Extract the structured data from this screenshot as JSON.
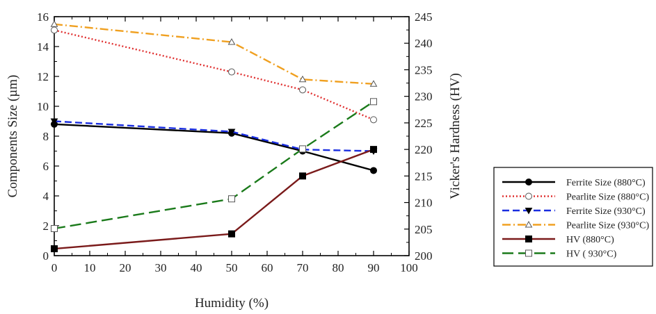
{
  "chart_data": {
    "type": "line",
    "title": "",
    "xlabel": "Humidity (%)",
    "ylabel": "Components Size (µm)",
    "y2label": "Vicker's Hardness (HV)",
    "xlim": [
      0,
      100
    ],
    "ylim": [
      0,
      16
    ],
    "y2lim": [
      200,
      245
    ],
    "xticks": [
      "0",
      "10",
      "20",
      "30",
      "40",
      "50",
      "60",
      "70",
      "80",
      "90",
      "100"
    ],
    "yticks": [
      "0",
      "2",
      "4",
      "6",
      "8",
      "10",
      "12",
      "14",
      "16"
    ],
    "y2ticks": [
      "200",
      "205",
      "210",
      "215",
      "220",
      "225",
      "230",
      "235",
      "240",
      "245"
    ],
    "grid": false,
    "legend_position": "right",
    "series": [
      {
        "name": "Ferrite Size (880°C)",
        "axis": "left",
        "color": "#000000",
        "style": "solid",
        "marker": "filled-circle",
        "x": [
          0,
          50,
          70,
          90
        ],
        "y": [
          8.8,
          8.2,
          7.0,
          5.7
        ]
      },
      {
        "name": "Pearlite Size (880°C)",
        "axis": "left",
        "color": "#e03030",
        "style": "dotted",
        "marker": "open-circle",
        "x": [
          0,
          50,
          70,
          90
        ],
        "y": [
          15.1,
          12.3,
          11.1,
          9.1
        ]
      },
      {
        "name": "Ferrite Size (930°C)",
        "axis": "left",
        "color": "#1a2ee0",
        "style": "dashed",
        "marker": "filled-triangle-down",
        "x": [
          0,
          50,
          70,
          90
        ],
        "y": [
          9.0,
          8.3,
          7.1,
          7.0
        ]
      },
      {
        "name": "Pearlite Size (930°C)",
        "axis": "left",
        "color": "#f0a020",
        "style": "dash-dot",
        "marker": "open-triangle",
        "x": [
          0,
          50,
          70,
          90
        ],
        "y": [
          15.5,
          14.3,
          11.8,
          11.5
        ]
      },
      {
        "name": "HV (880°C)",
        "axis": "right",
        "color": "#7a1a1a",
        "style": "solid",
        "marker": "filled-square",
        "x": [
          0,
          50,
          70,
          90
        ],
        "y": [
          201.3,
          204.1,
          215.0,
          220.0
        ]
      },
      {
        "name": "HV ( 930°C)",
        "axis": "right",
        "color": "#1a7a1a",
        "style": "long-dash",
        "marker": "open-square",
        "x": [
          0,
          50,
          70,
          90
        ],
        "y": [
          205.1,
          210.7,
          220.1,
          229.0
        ]
      }
    ]
  }
}
